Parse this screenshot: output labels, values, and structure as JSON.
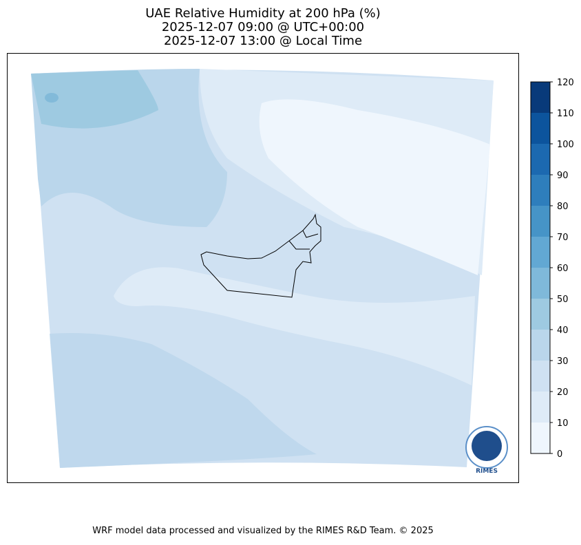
{
  "header": {
    "title_lines": [
      "UAE Relative Humidity at 200 hPa (%)",
      "2025-12-07 09:00 @ UTC+00:00",
      "2025-12-07 13:00 @ Local Time"
    ]
  },
  "colorbar": {
    "ticks": [
      0,
      10,
      20,
      30,
      40,
      50,
      60,
      70,
      80,
      90,
      100,
      110,
      120
    ],
    "colors": [
      "#eff6fd",
      "#deebf7",
      "#cfe1f2",
      "#bad6eb",
      "#9ecae1",
      "#7fb9da",
      "#62a8d3",
      "#4694c7",
      "#2e7ebc",
      "#1c69b0",
      "#0c549d",
      "#083a7a"
    ]
  },
  "logo": {
    "label": "RIMES"
  },
  "footer": {
    "text": "WRF model data processed and visualized by the RIMES R&D Team. © 2025"
  }
}
